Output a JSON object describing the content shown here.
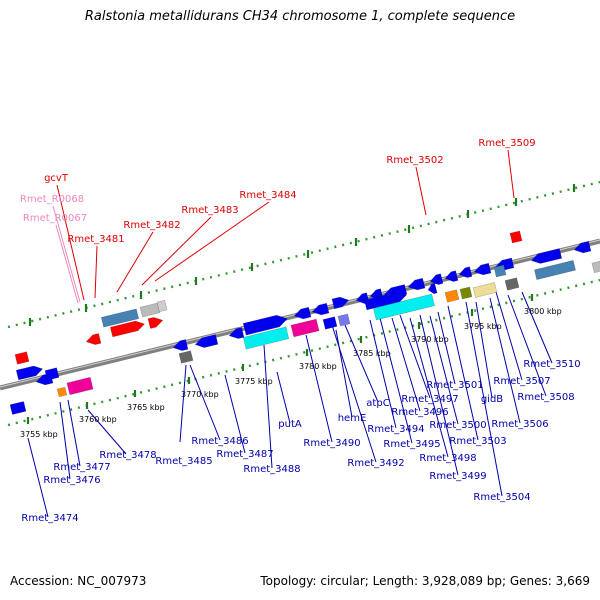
{
  "title": "Ralstonia metallidurans CH34 chromosome 1, complete sequence",
  "accession": "Accession: NC_007973",
  "topology": "Topology: circular; Length: 3,928,089 bp; Genes: 3,669",
  "colors": {
    "forward_gene": "#0000ee",
    "reverse_gene": "#ff0000",
    "rna_label": "#ee88bb",
    "label_top": "#dd0000",
    "label_bottom": "#0000aa",
    "cds_feature": "#00eeee",
    "magenta_feature": "#ee0099",
    "steel_feature": "#4682b4",
    "khaki_feature": "#eedd99",
    "orange_feature": "#ff8800",
    "olive_feature": "#778800",
    "gray_feature": "#777777"
  },
  "tick_labels": [
    "3755 kbp",
    "3760 kbp",
    "3765 kbp",
    "3770 kbp",
    "3775 kbp",
    "3780 kbp",
    "3785 kbp",
    "3790 kbp",
    "3795 kbp",
    "3800 kbp"
  ],
  "upper_labels": [
    "gcvT",
    "Rmet_R0068",
    "Rmet_R0067",
    "Rmet_3481",
    "Rmet_3482",
    "Rmet_3483",
    "Rmet_3484",
    "Rmet_3502",
    "Rmet_3509"
  ],
  "lower_labels": [
    "Rmet_3474",
    "Rmet_3476",
    "Rmet_3477",
    "Rmet_3478",
    "Rmet_3485",
    "Rmet_3486",
    "Rmet_3487",
    "Rmet_3488",
    "putA",
    "Rmet_3490",
    "hemE",
    "Rmet_3492",
    "atpC",
    "Rmet_3494",
    "Rmet_3495",
    "Rmet_3496",
    "Rmet_3497",
    "Rmet_3498",
    "Rmet_3499",
    "Rmet_3500",
    "Rmet_3501",
    "Rmet_3503",
    "Rmet_3504",
    "gidB",
    "Rmet_3506",
    "Rmet_3507",
    "Rmet_3508",
    "Rmet_3510"
  ]
}
